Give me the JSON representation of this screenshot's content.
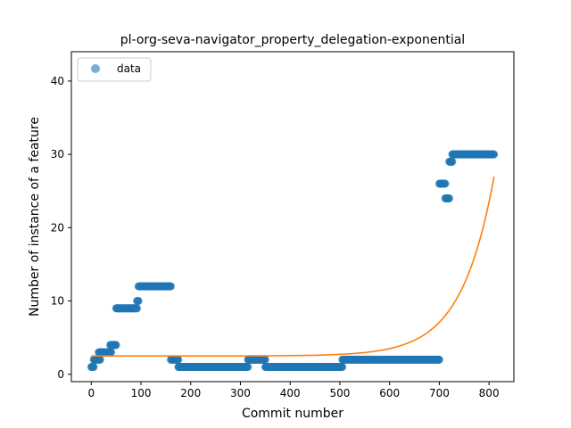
{
  "chart_data": {
    "type": "scatter",
    "title": "pl-org-seva-navigator_property_delegation-exponential",
    "xlabel": "Commit number",
    "ylabel": "Number of instance of a feature",
    "xlim": [
      -40,
      850
    ],
    "ylim": [
      -1,
      44
    ],
    "xticks": [
      0,
      100,
      200,
      300,
      400,
      500,
      600,
      700,
      800
    ],
    "yticks": [
      0,
      10,
      20,
      30,
      40
    ],
    "grid": false,
    "legend": {
      "placement": "top-left",
      "entries": [
        "data"
      ]
    },
    "series": [
      {
        "name": "data",
        "kind": "scatter",
        "color": "#1f77b4",
        "segments": [
          {
            "x_start": 0,
            "x_end": 5,
            "y": 1
          },
          {
            "x_start": 5,
            "x_end": 18,
            "y": 2
          },
          {
            "x_start": 15,
            "x_end": 40,
            "y": 3
          },
          {
            "x_start": 38,
            "x_end": 50,
            "y": 4
          },
          {
            "x_start": 50,
            "x_end": 92,
            "y": 9
          },
          {
            "x_start": 92,
            "x_end": 95,
            "y": 10
          },
          {
            "x_start": 95,
            "x_end": 160,
            "y": 12
          },
          {
            "x_start": 160,
            "x_end": 175,
            "y": 2
          },
          {
            "x_start": 175,
            "x_end": 315,
            "y": 1
          },
          {
            "x_start": 315,
            "x_end": 350,
            "y": 2
          },
          {
            "x_start": 350,
            "x_end": 505,
            "y": 1
          },
          {
            "x_start": 505,
            "x_end": 700,
            "y": 2
          },
          {
            "x_start": 700,
            "x_end": 712,
            "y": 26
          },
          {
            "x_start": 712,
            "x_end": 720,
            "y": 24
          },
          {
            "x_start": 720,
            "x_end": 726,
            "y": 29
          },
          {
            "x_start": 726,
            "x_end": 810,
            "y": 30
          }
        ]
      },
      {
        "name": "",
        "kind": "line",
        "color": "#ff7f0e",
        "model": "a*exp(b*x)+c",
        "a": 0.00011,
        "b": 0.0152,
        "c": 2.5,
        "x_range": [
          0,
          810
        ]
      }
    ]
  }
}
